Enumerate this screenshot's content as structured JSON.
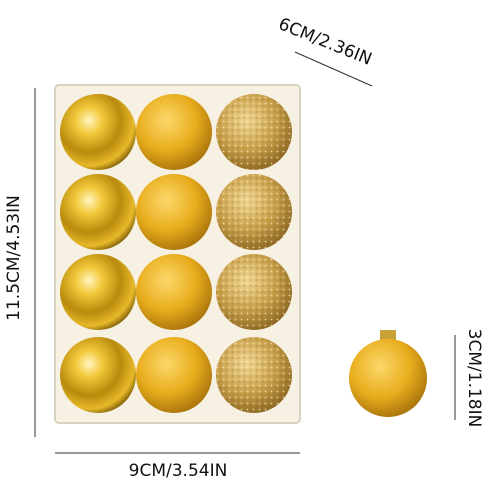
{
  "labels": {
    "depth": "6CM/2.36IN",
    "height": "11.5CM/4.53IN",
    "width": "9CM/3.54IN",
    "ball_diameter": "3CM/1.18IN"
  }
}
